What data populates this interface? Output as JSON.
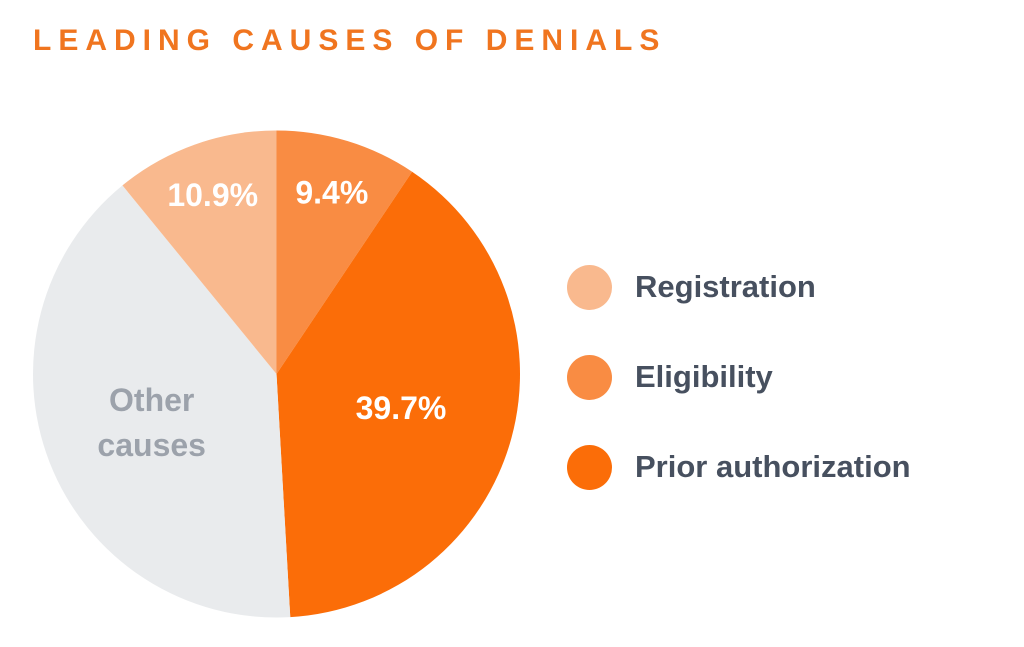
{
  "page": {
    "background_color": "#FFFFFF"
  },
  "chart_data": {
    "type": "pie",
    "title": "LEADING CAUSES OF DENIALS",
    "title_color": "#F0751F",
    "start_angle_deg": 0,
    "direction": "clockwise",
    "legend_position": "right",
    "slices": [
      {
        "label": "Eligibility",
        "value": 9.4,
        "display_label": "9.4%",
        "color": "#F98C43",
        "text_color": "#FFFFFF",
        "label_radius_frac": 0.78
      },
      {
        "label": "Prior authorization",
        "value": 39.7,
        "display_label": "39.7%",
        "color": "#FB6D08",
        "text_color": "#FFFFFF",
        "label_radius_frac": 0.53
      },
      {
        "label": "Other causes",
        "value": 40.0,
        "display_label": "Other\ncauses",
        "color": "#E9EBED",
        "text_color": "#9CA2AB",
        "label_radius_frac": 0.55
      },
      {
        "label": "Registration",
        "value": 10.9,
        "display_label": "10.9%",
        "color": "#F9B98E",
        "text_color": "#FFFFFF",
        "label_radius_frac": 0.78
      }
    ],
    "legend": {
      "items": [
        {
          "label": "Registration",
          "color": "#F9B98E"
        },
        {
          "label": "Eligibility",
          "color": "#F98C43"
        },
        {
          "label": "Prior authorization",
          "color": "#FB6D08"
        }
      ]
    }
  }
}
